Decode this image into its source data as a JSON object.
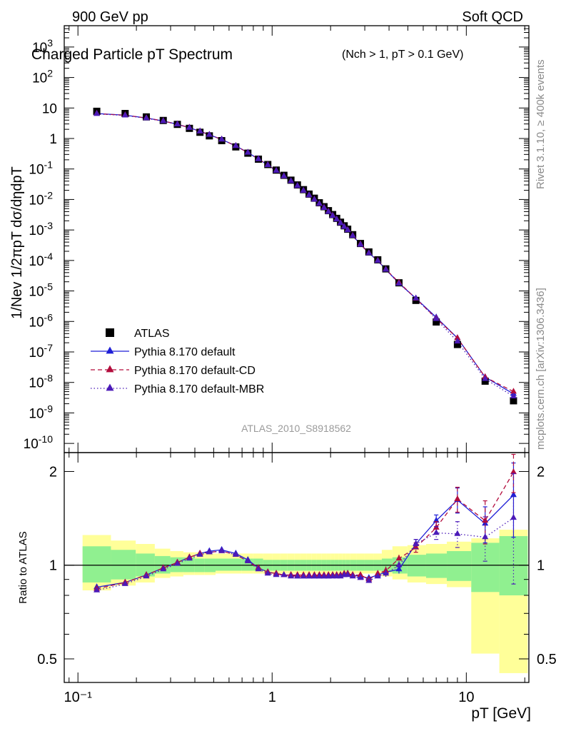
{
  "header": {
    "left": "900 GeV pp",
    "right": "Soft QCD"
  },
  "side_labels": {
    "rivet": "Rivet 3.1.10, ≥ 400k events",
    "mcplots": "mcplots.cern.ch [arXiv:1306.3436]"
  },
  "chart_data": [
    {
      "type": "scatter",
      "title": "Charged Particle pT Spectrum",
      "title_cut": "(Nch > 1, pT > 0.1 GeV)",
      "analysis_tag": "ATLAS_2010_S8918562",
      "ylabel": "1/Nev 1/2πpT dσ/dηdpT",
      "xlabel": "pT [GeV]",
      "xscale": "log",
      "yscale": "log",
      "xlim": [
        0.085,
        21
      ],
      "ylim": [
        5e-11,
        5000
      ],
      "legend_position": "lower-left",
      "x": [
        0.125,
        0.175,
        0.225,
        0.275,
        0.325,
        0.375,
        0.425,
        0.475,
        0.55,
        0.65,
        0.75,
        0.85,
        0.95,
        1.05,
        1.15,
        1.25,
        1.35,
        1.45,
        1.55,
        1.65,
        1.75,
        1.85,
        1.95,
        2.05,
        2.15,
        2.25,
        2.35,
        2.45,
        2.6,
        2.85,
        3.15,
        3.5,
        3.85,
        4.5,
        5.5,
        7.0,
        9.0,
        12.5,
        17.5
      ],
      "series": [
        {
          "name": "ATLAS",
          "marker": "square",
          "color": "#000000",
          "values": [
            7.8,
            6.6,
            5.1,
            3.9,
            2.9,
            2.15,
            1.6,
            1.22,
            0.85,
            0.53,
            0.33,
            0.21,
            0.14,
            0.092,
            0.062,
            0.043,
            0.03,
            0.021,
            0.015,
            0.011,
            0.0078,
            0.0058,
            0.0043,
            0.0032,
            0.0024,
            0.0018,
            0.00137,
            0.00106,
            0.0007,
            0.00036,
            0.00019,
            0.000105,
            5.3e-05,
            1.85e-05,
            4.9e-06,
            9.6e-07,
            1.75e-07,
            1.1e-08,
            2.5e-09
          ]
        },
        {
          "name": "Pythia 8.170 default",
          "marker": "triangle",
          "line": "solid",
          "color": "#1f1fd6",
          "values": [
            6.6,
            5.8,
            4.7,
            3.75,
            2.93,
            2.26,
            1.72,
            1.33,
            0.93,
            0.57,
            0.345,
            0.212,
            0.136,
            0.088,
            0.058,
            0.04,
            0.028,
            0.0195,
            0.0139,
            0.01,
            0.0072,
            0.0054,
            0.004,
            0.00297,
            0.00223,
            0.00168,
            0.00128,
            0.001,
            0.00065,
            0.00034,
            0.000175,
            9.9e-05,
            5.1e-05,
            1.8e-05,
            5.7e-06,
            1.37e-06,
            2.85e-07,
            1.5e-08,
            4.2e-09
          ]
        },
        {
          "name": "Pythia 8.170 default-CD",
          "marker": "triangle",
          "line": "dashed",
          "color": "#b30c3c",
          "values": [
            6.5,
            5.8,
            4.7,
            3.75,
            2.93,
            2.26,
            1.72,
            1.33,
            0.93,
            0.57,
            0.345,
            0.212,
            0.136,
            0.088,
            0.058,
            0.04,
            0.028,
            0.0195,
            0.0139,
            0.01,
            0.0072,
            0.0054,
            0.004,
            0.00297,
            0.00223,
            0.00168,
            0.00128,
            0.001,
            0.00065,
            0.00034,
            0.000175,
            9.9e-05,
            5.1e-05,
            1.9e-05,
            5.6e-06,
            1.27e-06,
            2.85e-07,
            1.5e-08,
            5e-09
          ]
        },
        {
          "name": "Pythia 8.170 default-MBR",
          "marker": "triangle",
          "line": "dotted",
          "color": "#4b1ab8",
          "values": [
            6.4,
            5.7,
            4.6,
            3.7,
            2.9,
            2.24,
            1.71,
            1.32,
            0.93,
            0.57,
            0.343,
            0.21,
            0.134,
            0.087,
            0.058,
            0.04,
            0.028,
            0.0194,
            0.0138,
            0.0099,
            0.0072,
            0.0053,
            0.0039,
            0.0029,
            0.0022,
            0.00166,
            0.00126,
            0.00098,
            0.00064,
            0.00033,
            0.000172,
            9.7e-05,
            5e-05,
            1.75e-05,
            5.7e-06,
            1.2e-06,
            2.2e-07,
            1.3e-08,
            3.5e-09
          ]
        }
      ]
    },
    {
      "type": "scatter",
      "ylabel": "Ratio to ATLAS",
      "xscale": "log",
      "ylim": [
        0.42,
        2.3
      ],
      "y_ticks": [
        "0.5",
        "1",
        "2"
      ],
      "x_ticks": [
        "10⁻¹",
        "1",
        "10"
      ],
      "reference_line": 1,
      "band_colors": {
        "inner": "#90f090",
        "outer": "#ffff99"
      },
      "band_inner": [
        [
          0.88,
          1.15
        ],
        [
          0.9,
          1.12
        ],
        [
          0.92,
          1.09
        ],
        [
          0.94,
          1.07
        ],
        [
          0.95,
          1.06
        ],
        [
          0.95,
          1.06
        ],
        [
          0.95,
          1.05
        ],
        [
          0.95,
          1.05
        ],
        [
          0.96,
          1.05
        ],
        [
          0.96,
          1.05
        ],
        [
          0.96,
          1.05
        ],
        [
          0.96,
          1.05
        ],
        [
          0.96,
          1.04
        ],
        [
          0.96,
          1.04
        ],
        [
          0.96,
          1.04
        ],
        [
          0.96,
          1.04
        ],
        [
          0.96,
          1.04
        ],
        [
          0.96,
          1.04
        ],
        [
          0.96,
          1.04
        ],
        [
          0.96,
          1.04
        ],
        [
          0.96,
          1.04
        ],
        [
          0.96,
          1.04
        ],
        [
          0.96,
          1.04
        ],
        [
          0.96,
          1.04
        ],
        [
          0.96,
          1.04
        ],
        [
          0.96,
          1.04
        ],
        [
          0.96,
          1.04
        ],
        [
          0.96,
          1.04
        ],
        [
          0.96,
          1.04
        ],
        [
          0.96,
          1.04
        ],
        [
          0.96,
          1.04
        ],
        [
          0.96,
          1.04
        ],
        [
          0.95,
          1.05
        ],
        [
          0.94,
          1.06
        ],
        [
          0.92,
          1.08
        ],
        [
          0.91,
          1.09
        ],
        [
          0.89,
          1.11
        ],
        [
          0.82,
          1.18
        ],
        [
          0.8,
          1.24
        ]
      ],
      "band_outer": [
        [
          0.83,
          1.25
        ],
        [
          0.86,
          1.2
        ],
        [
          0.88,
          1.17
        ],
        [
          0.91,
          1.13
        ],
        [
          0.92,
          1.11
        ],
        [
          0.93,
          1.1
        ],
        [
          0.93,
          1.1
        ],
        [
          0.93,
          1.09
        ],
        [
          0.94,
          1.09
        ],
        [
          0.94,
          1.09
        ],
        [
          0.94,
          1.09
        ],
        [
          0.94,
          1.09
        ],
        [
          0.94,
          1.09
        ],
        [
          0.94,
          1.09
        ],
        [
          0.94,
          1.09
        ],
        [
          0.94,
          1.09
        ],
        [
          0.94,
          1.09
        ],
        [
          0.94,
          1.09
        ],
        [
          0.94,
          1.09
        ],
        [
          0.94,
          1.09
        ],
        [
          0.94,
          1.09
        ],
        [
          0.94,
          1.09
        ],
        [
          0.94,
          1.09
        ],
        [
          0.94,
          1.09
        ],
        [
          0.94,
          1.09
        ],
        [
          0.94,
          1.09
        ],
        [
          0.94,
          1.09
        ],
        [
          0.94,
          1.09
        ],
        [
          0.94,
          1.09
        ],
        [
          0.94,
          1.09
        ],
        [
          0.94,
          1.09
        ],
        [
          0.94,
          1.09
        ],
        [
          0.92,
          1.12
        ],
        [
          0.9,
          1.15
        ],
        [
          0.88,
          1.16
        ],
        [
          0.87,
          1.17
        ],
        [
          0.85,
          1.19
        ],
        [
          0.52,
          1.22
        ],
        [
          0.45,
          1.3
        ]
      ],
      "series": [
        {
          "name": "Pythia 8.170 default",
          "color": "#1f1fd6",
          "line": "solid",
          "values": [
            0.85,
            0.88,
            0.93,
            0.98,
            1.02,
            1.06,
            1.09,
            1.11,
            1.12,
            1.09,
            1.04,
            0.98,
            0.95,
            0.94,
            0.93,
            0.93,
            0.92,
            0.92,
            0.92,
            0.92,
            0.92,
            0.92,
            0.92,
            0.93,
            0.93,
            0.93,
            0.93,
            0.94,
            0.93,
            0.92,
            0.91,
            0.93,
            0.95,
            0.97,
            1.17,
            1.39,
            1.62,
            1.36,
            1.68
          ],
          "errors": [
            0.01,
            0.01,
            0.01,
            0.01,
            0.01,
            0.01,
            0.01,
            0.01,
            0.01,
            0.01,
            0.01,
            0.01,
            0.01,
            0.01,
            0.01,
            0.01,
            0.01,
            0.01,
            0.01,
            0.01,
            0.01,
            0.01,
            0.01,
            0.01,
            0.01,
            0.01,
            0.01,
            0.01,
            0.01,
            0.02,
            0.02,
            0.02,
            0.03,
            0.03,
            0.04,
            0.06,
            0.15,
            0.18,
            0.45
          ]
        },
        {
          "name": "Pythia 8.170 default-CD",
          "color": "#b30c3c",
          "line": "dashed",
          "values": [
            0.84,
            0.88,
            0.93,
            0.98,
            1.02,
            1.06,
            1.09,
            1.1,
            1.11,
            1.08,
            1.03,
            0.98,
            0.95,
            0.94,
            0.93,
            0.93,
            0.93,
            0.93,
            0.93,
            0.93,
            0.93,
            0.93,
            0.93,
            0.93,
            0.93,
            0.93,
            0.94,
            0.94,
            0.93,
            0.93,
            0.9,
            0.94,
            0.96,
            1.05,
            1.14,
            1.32,
            1.63,
            1.39,
            1.99
          ],
          "errors": [
            0.01,
            0.01,
            0.01,
            0.01,
            0.01,
            0.01,
            0.01,
            0.01,
            0.01,
            0.01,
            0.01,
            0.01,
            0.01,
            0.01,
            0.01,
            0.01,
            0.01,
            0.01,
            0.01,
            0.01,
            0.01,
            0.01,
            0.01,
            0.01,
            0.01,
            0.01,
            0.01,
            0.01,
            0.01,
            0.02,
            0.02,
            0.02,
            0.03,
            0.03,
            0.04,
            0.06,
            0.15,
            0.22,
            0.28
          ]
        },
        {
          "name": "Pythia 8.170 default-MBR",
          "color": "#4b1ab8",
          "line": "dotted",
          "values": [
            0.83,
            0.87,
            0.92,
            0.97,
            1.01,
            1.05,
            1.08,
            1.1,
            1.11,
            1.08,
            1.03,
            0.97,
            0.94,
            0.93,
            0.93,
            0.92,
            0.92,
            0.92,
            0.92,
            0.92,
            0.92,
            0.92,
            0.92,
            0.92,
            0.92,
            0.92,
            0.93,
            0.93,
            0.92,
            0.91,
            0.89,
            0.92,
            0.94,
            1.0,
            1.17,
            1.27,
            1.26,
            1.23,
            1.42
          ],
          "errors": [
            0.01,
            0.01,
            0.01,
            0.01,
            0.01,
            0.01,
            0.01,
            0.01,
            0.01,
            0.01,
            0.01,
            0.01,
            0.01,
            0.01,
            0.01,
            0.01,
            0.01,
            0.01,
            0.01,
            0.01,
            0.01,
            0.01,
            0.01,
            0.01,
            0.01,
            0.01,
            0.01,
            0.01,
            0.01,
            0.02,
            0.02,
            0.02,
            0.03,
            0.03,
            0.04,
            0.06,
            0.12,
            0.2,
            0.55
          ]
        }
      ]
    }
  ]
}
